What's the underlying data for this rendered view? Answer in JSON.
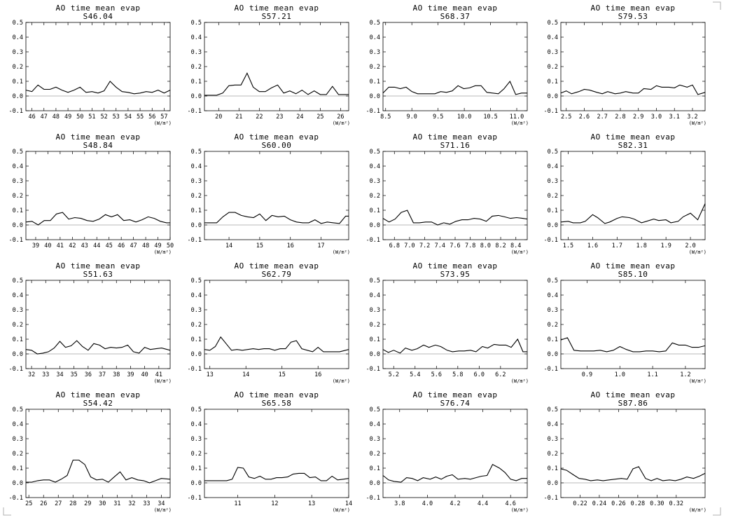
{
  "chart_data": [
    {
      "type": "line",
      "title": "AO time mean evap",
      "subtitle": "S46.04",
      "unit": "(W/m²)",
      "xlim": [
        45.5,
        57.5
      ],
      "ylim": [
        -0.1,
        0.5
      ],
      "xticks": [
        46,
        47,
        48,
        49,
        50,
        51,
        52,
        53,
        54,
        55,
        56,
        57
      ],
      "yticks": [
        -0.1,
        0.0,
        0.1,
        0.2,
        0.3,
        0.4,
        0.5
      ],
      "x": [
        45.5,
        46,
        46.5,
        47,
        47.5,
        48,
        48.5,
        49,
        49.5,
        50,
        50.5,
        51,
        51.5,
        52,
        52.5,
        53,
        53.5,
        54,
        54.5,
        55,
        55.5,
        56,
        56.5,
        57,
        57.5
      ],
      "y": [
        0.04,
        0.03,
        0.075,
        0.045,
        0.045,
        0.06,
        0.04,
        0.025,
        0.04,
        0.06,
        0.025,
        0.03,
        0.02,
        0.035,
        0.1,
        0.06,
        0.03,
        0.025,
        0.015,
        0.02,
        0.03,
        0.025,
        0.04,
        0.02,
        0.04
      ]
    },
    {
      "type": "line",
      "title": "AO time mean evap",
      "subtitle": "S57.21",
      "unit": "(W/m²)",
      "xlim": [
        19.3,
        26.4
      ],
      "ylim": [
        -0.1,
        0.5
      ],
      "xticks": [
        20,
        21,
        22,
        23,
        24,
        25,
        26
      ],
      "yticks": [
        -0.1,
        0.0,
        0.1,
        0.2,
        0.3,
        0.4,
        0.5
      ],
      "x": [
        19.3,
        19.6,
        19.9,
        20.2,
        20.5,
        20.8,
        21.1,
        21.4,
        21.7,
        22.0,
        22.3,
        22.6,
        22.9,
        23.2,
        23.5,
        23.8,
        24.1,
        24.4,
        24.7,
        25.0,
        25.3,
        25.6,
        25.9,
        26.2,
        26.4
      ],
      "y": [
        0.005,
        0.005,
        0.005,
        0.02,
        0.07,
        0.075,
        0.075,
        0.155,
        0.06,
        0.03,
        0.03,
        0.055,
        0.075,
        0.02,
        0.035,
        0.015,
        0.04,
        0.01,
        0.035,
        0.01,
        0.01,
        0.065,
        0.01,
        0.01,
        0.01
      ]
    },
    {
      "type": "line",
      "title": "AO time mean evap",
      "subtitle": "S68.37",
      "unit": "(W/m²)",
      "xlim": [
        8.45,
        11.2
      ],
      "ylim": [
        -0.1,
        0.5
      ],
      "xticks": [
        8.5,
        9.0,
        9.5,
        10.0,
        10.5,
        11.0
      ],
      "yticks": [
        -0.1,
        0.0,
        0.1,
        0.2,
        0.3,
        0.4,
        0.5
      ],
      "x": [
        8.45,
        8.56,
        8.67,
        8.78,
        8.89,
        9.0,
        9.11,
        9.22,
        9.33,
        9.44,
        9.55,
        9.66,
        9.77,
        9.88,
        9.99,
        10.1,
        10.21,
        10.32,
        10.43,
        10.54,
        10.65,
        10.76,
        10.87,
        10.98,
        11.09,
        11.2
      ],
      "y": [
        0.02,
        0.06,
        0.06,
        0.05,
        0.06,
        0.03,
        0.015,
        0.015,
        0.015,
        0.015,
        0.03,
        0.025,
        0.035,
        0.07,
        0.05,
        0.055,
        0.07,
        0.07,
        0.025,
        0.02,
        0.015,
        0.05,
        0.1,
        0.01,
        0.02,
        0.02
      ]
    },
    {
      "type": "line",
      "title": "AO time mean evap",
      "subtitle": "S79.53",
      "unit": "(W/m²)",
      "xlim": [
        2.47,
        3.27
      ],
      "ylim": [
        -0.1,
        0.5
      ],
      "xticks": [
        2.5,
        2.6,
        2.7,
        2.8,
        2.9,
        3.0,
        3.1,
        3.2
      ],
      "yticks": [
        -0.1,
        0.0,
        0.1,
        0.2,
        0.3,
        0.4,
        0.5
      ],
      "x": [
        2.47,
        2.5,
        2.53,
        2.57,
        2.6,
        2.63,
        2.67,
        2.7,
        2.73,
        2.77,
        2.8,
        2.83,
        2.87,
        2.9,
        2.93,
        2.97,
        3.0,
        3.03,
        3.07,
        3.1,
        3.13,
        3.17,
        3.2,
        3.23,
        3.27
      ],
      "y": [
        0.02,
        0.035,
        0.015,
        0.03,
        0.045,
        0.04,
        0.025,
        0.015,
        0.03,
        0.015,
        0.02,
        0.03,
        0.02,
        0.02,
        0.05,
        0.045,
        0.07,
        0.06,
        0.06,
        0.055,
        0.075,
        0.06,
        0.075,
        0.01,
        0.025
      ]
    },
    {
      "type": "line",
      "title": "AO time mean evap",
      "subtitle": "S48.84",
      "unit": "(W/m²)",
      "xlim": [
        38.2,
        50
      ],
      "ylim": [
        -0.1,
        0.5
      ],
      "xticks": [
        39,
        40,
        41,
        42,
        43,
        44,
        45,
        46,
        47,
        48,
        49,
        50
      ],
      "yticks": [
        -0.1,
        0.0,
        0.1,
        0.2,
        0.3,
        0.4,
        0.5
      ],
      "x": [
        38.2,
        38.7,
        39.2,
        39.7,
        40.2,
        40.7,
        41.2,
        41.7,
        42.2,
        42.7,
        43.2,
        43.7,
        44.2,
        44.7,
        45.2,
        45.7,
        46.2,
        46.7,
        47.2,
        47.7,
        48.2,
        48.7,
        49.2,
        49.7,
        50
      ],
      "y": [
        0.02,
        0.025,
        0.0,
        0.03,
        0.03,
        0.075,
        0.085,
        0.04,
        0.05,
        0.045,
        0.03,
        0.025,
        0.04,
        0.07,
        0.055,
        0.07,
        0.03,
        0.035,
        0.02,
        0.035,
        0.055,
        0.045,
        0.025,
        0.015,
        0.015
      ]
    },
    {
      "type": "line",
      "title": "AO time mean evap",
      "subtitle": "S60.00",
      "unit": "(W/m²)",
      "xlim": [
        13.2,
        17.9
      ],
      "ylim": [
        -0.1,
        0.5
      ],
      "xticks": [
        14,
        15,
        16,
        17
      ],
      "yticks": [
        -0.1,
        0.0,
        0.1,
        0.2,
        0.3,
        0.4,
        0.5
      ],
      "x": [
        13.2,
        13.4,
        13.6,
        13.8,
        14.0,
        14.2,
        14.4,
        14.6,
        14.8,
        15.0,
        15.2,
        15.4,
        15.6,
        15.8,
        16.0,
        16.2,
        16.4,
        16.6,
        16.8,
        17.0,
        17.2,
        17.4,
        17.6,
        17.8,
        17.9
      ],
      "y": [
        0.015,
        0.015,
        0.015,
        0.055,
        0.085,
        0.085,
        0.065,
        0.055,
        0.05,
        0.075,
        0.03,
        0.065,
        0.055,
        0.06,
        0.035,
        0.02,
        0.015,
        0.015,
        0.035,
        0.01,
        0.02,
        0.015,
        0.01,
        0.06,
        0.06
      ]
    },
    {
      "type": "line",
      "title": "AO time mean evap",
      "subtitle": "S71.16",
      "unit": "(W/m²)",
      "xlim": [
        6.65,
        8.55
      ],
      "ylim": [
        -0.1,
        0.5
      ],
      "xticks": [
        6.8,
        7.0,
        7.2,
        7.4,
        7.6,
        7.8,
        8.0,
        8.2,
        8.4
      ],
      "yticks": [
        -0.1,
        0.0,
        0.1,
        0.2,
        0.3,
        0.4,
        0.5
      ],
      "x": [
        6.65,
        6.73,
        6.81,
        6.89,
        6.97,
        7.05,
        7.13,
        7.21,
        7.29,
        7.37,
        7.45,
        7.53,
        7.61,
        7.69,
        7.77,
        7.85,
        7.93,
        8.01,
        8.09,
        8.17,
        8.25,
        8.33,
        8.41,
        8.49,
        8.55
      ],
      "y": [
        0.045,
        0.02,
        0.04,
        0.085,
        0.1,
        0.015,
        0.015,
        0.02,
        0.02,
        0.0,
        0.015,
        0.005,
        0.025,
        0.035,
        0.035,
        0.045,
        0.04,
        0.025,
        0.06,
        0.065,
        0.055,
        0.045,
        0.05,
        0.045,
        0.04
      ]
    },
    {
      "type": "line",
      "title": "AO time mean evap",
      "subtitle": "S82.31",
      "unit": "(W/m²)",
      "xlim": [
        1.47,
        2.06
      ],
      "ylim": [
        -0.1,
        0.5
      ],
      "xticks": [
        1.5,
        1.6,
        1.7,
        1.8,
        1.9,
        2.0
      ],
      "yticks": [
        -0.1,
        0.0,
        0.1,
        0.2,
        0.3,
        0.4,
        0.5
      ],
      "x": [
        1.47,
        1.5,
        1.52,
        1.55,
        1.57,
        1.6,
        1.62,
        1.65,
        1.67,
        1.7,
        1.72,
        1.75,
        1.77,
        1.8,
        1.82,
        1.85,
        1.87,
        1.9,
        1.92,
        1.95,
        1.97,
        2.0,
        2.03,
        2.06
      ],
      "y": [
        0.02,
        0.025,
        0.015,
        0.015,
        0.025,
        0.07,
        0.05,
        0.01,
        0.02,
        0.045,
        0.055,
        0.05,
        0.04,
        0.015,
        0.025,
        0.04,
        0.03,
        0.035,
        0.015,
        0.025,
        0.055,
        0.08,
        0.035,
        0.145
      ]
    },
    {
      "type": "line",
      "title": "AO time mean evap",
      "subtitle": "S51.63",
      "unit": "(W/m²)",
      "xlim": [
        31.6,
        41.8
      ],
      "ylim": [
        -0.1,
        0.5
      ],
      "xticks": [
        32,
        33,
        34,
        35,
        36,
        37,
        38,
        39,
        40,
        41
      ],
      "yticks": [
        -0.1,
        0.0,
        0.1,
        0.2,
        0.3,
        0.4,
        0.5
      ],
      "x": [
        31.6,
        32,
        32.4,
        32.8,
        33.2,
        33.6,
        34,
        34.4,
        34.8,
        35.2,
        35.6,
        36,
        36.4,
        36.8,
        37.2,
        37.6,
        38,
        38.4,
        38.8,
        39.2,
        39.6,
        40,
        40.4,
        40.8,
        41.2,
        41.8
      ],
      "y": [
        0.03,
        0.025,
        0.0,
        0.005,
        0.015,
        0.04,
        0.085,
        0.045,
        0.055,
        0.09,
        0.05,
        0.025,
        0.07,
        0.06,
        0.035,
        0.045,
        0.04,
        0.045,
        0.06,
        0.015,
        0.005,
        0.045,
        0.03,
        0.035,
        0.04,
        0.025
      ]
    },
    {
      "type": "line",
      "title": "AO time mean evap",
      "subtitle": "S62.79",
      "unit": "(W/m²)",
      "xlim": [
        12.85,
        16.85
      ],
      "ylim": [
        -0.1,
        0.5
      ],
      "xticks": [
        13,
        14,
        15,
        16
      ],
      "yticks": [
        -0.1,
        0.0,
        0.1,
        0.2,
        0.3,
        0.4,
        0.5
      ],
      "x": [
        12.85,
        13.0,
        13.15,
        13.3,
        13.45,
        13.6,
        13.75,
        13.9,
        14.05,
        14.2,
        14.35,
        14.5,
        14.65,
        14.8,
        14.95,
        15.1,
        15.25,
        15.4,
        15.55,
        15.7,
        15.85,
        16.0,
        16.15,
        16.3,
        16.45,
        16.6,
        16.85
      ],
      "y": [
        0.03,
        0.025,
        0.05,
        0.115,
        0.07,
        0.025,
        0.03,
        0.025,
        0.03,
        0.035,
        0.03,
        0.035,
        0.035,
        0.025,
        0.035,
        0.035,
        0.08,
        0.09,
        0.035,
        0.025,
        0.015,
        0.045,
        0.015,
        0.015,
        0.015,
        0.015,
        0.03
      ]
    },
    {
      "type": "line",
      "title": "AO time mean evap",
      "subtitle": "S73.95",
      "unit": "(W/m²)",
      "xlim": [
        5.1,
        6.45
      ],
      "ylim": [
        -0.1,
        0.5
      ],
      "xticks": [
        5.2,
        5.4,
        5.6,
        5.8,
        6.0,
        6.2
      ],
      "yticks": [
        -0.1,
        0.0,
        0.1,
        0.2,
        0.3,
        0.4,
        0.5
      ],
      "x": [
        5.1,
        5.15,
        5.2,
        5.26,
        5.31,
        5.37,
        5.42,
        5.48,
        5.53,
        5.59,
        5.64,
        5.7,
        5.75,
        5.81,
        5.86,
        5.92,
        5.97,
        6.03,
        6.08,
        6.14,
        6.19,
        6.25,
        6.3,
        6.36,
        6.41,
        6.45
      ],
      "y": [
        0.03,
        0.01,
        0.025,
        0.005,
        0.04,
        0.025,
        0.035,
        0.06,
        0.045,
        0.06,
        0.05,
        0.025,
        0.015,
        0.02,
        0.02,
        0.025,
        0.015,
        0.05,
        0.04,
        0.065,
        0.06,
        0.06,
        0.045,
        0.1,
        0.015,
        0.015
      ]
    },
    {
      "type": "line",
      "title": "AO time mean evap",
      "subtitle": "S85.10",
      "unit": "(W/m²)",
      "xlim": [
        0.82,
        1.26
      ],
      "ylim": [
        -0.1,
        0.5
      ],
      "xticks": [
        0.9,
        1.0,
        1.1,
        1.2
      ],
      "yticks": [
        -0.1,
        0.0,
        0.1,
        0.2,
        0.3,
        0.4,
        0.5
      ],
      "x": [
        0.82,
        0.84,
        0.86,
        0.88,
        0.9,
        0.92,
        0.94,
        0.96,
        0.98,
        1.0,
        1.02,
        1.04,
        1.06,
        1.08,
        1.1,
        1.12,
        1.14,
        1.16,
        1.18,
        1.2,
        1.22,
        1.24,
        1.26
      ],
      "y": [
        0.095,
        0.11,
        0.025,
        0.02,
        0.02,
        0.02,
        0.025,
        0.015,
        0.025,
        0.05,
        0.03,
        0.015,
        0.015,
        0.02,
        0.02,
        0.015,
        0.02,
        0.075,
        0.06,
        0.06,
        0.045,
        0.045,
        0.055
      ]
    },
    {
      "type": "line",
      "title": "AO time mean evap",
      "subtitle": "S54.42",
      "unit": "(W/m²)",
      "xlim": [
        24.8,
        34.6
      ],
      "ylim": [
        -0.1,
        0.5
      ],
      "xticks": [
        25,
        26,
        27,
        28,
        29,
        30,
        31,
        32,
        33,
        34
      ],
      "yticks": [
        -0.1,
        0.0,
        0.1,
        0.2,
        0.3,
        0.4,
        0.5
      ],
      "x": [
        24.8,
        25.2,
        25.6,
        26,
        26.4,
        26.8,
        27.2,
        27.6,
        28,
        28.4,
        28.8,
        29.2,
        29.6,
        30,
        30.4,
        30.8,
        31.2,
        31.6,
        32,
        32.4,
        32.8,
        33.2,
        33.6,
        34,
        34.6
      ],
      "y": [
        0.005,
        0.005,
        0.015,
        0.02,
        0.02,
        0.005,
        0.025,
        0.05,
        0.155,
        0.155,
        0.125,
        0.04,
        0.02,
        0.025,
        0.005,
        0.04,
        0.075,
        0.02,
        0.035,
        0.02,
        0.015,
        0.0,
        0.015,
        0.03,
        0.025
      ]
    },
    {
      "type": "line",
      "title": "AO time mean evap",
      "subtitle": "S65.58",
      "unit": "(W/m²)",
      "xlim": [
        10.1,
        14.0
      ],
      "ylim": [
        -0.1,
        0.5
      ],
      "xticks": [
        11,
        12,
        13,
        14
      ],
      "yticks": [
        -0.1,
        0.0,
        0.1,
        0.2,
        0.3,
        0.4,
        0.5
      ],
      "x": [
        10.1,
        10.25,
        10.4,
        10.55,
        10.7,
        10.85,
        11.0,
        11.15,
        11.3,
        11.45,
        11.6,
        11.75,
        11.9,
        12.05,
        12.2,
        12.35,
        12.5,
        12.65,
        12.8,
        12.95,
        13.1,
        13.25,
        13.4,
        13.55,
        13.7,
        13.85,
        14.0
      ],
      "y": [
        0.015,
        0.015,
        0.015,
        0.015,
        0.015,
        0.025,
        0.105,
        0.1,
        0.04,
        0.03,
        0.045,
        0.025,
        0.025,
        0.035,
        0.035,
        0.04,
        0.06,
        0.065,
        0.065,
        0.035,
        0.04,
        0.015,
        0.015,
        0.045,
        0.02,
        0.025,
        0.03
      ]
    },
    {
      "type": "line",
      "title": "AO time mean evap",
      "subtitle": "S76.74",
      "unit": "(W/m²)",
      "xlim": [
        3.68,
        4.72
      ],
      "ylim": [
        -0.1,
        0.5
      ],
      "xticks": [
        3.8,
        4.0,
        4.2,
        4.4,
        4.6
      ],
      "yticks": [
        -0.1,
        0.0,
        0.1,
        0.2,
        0.3,
        0.4,
        0.5
      ],
      "x": [
        3.68,
        3.72,
        3.76,
        3.81,
        3.85,
        3.89,
        3.93,
        3.97,
        4.02,
        4.06,
        4.1,
        4.14,
        4.18,
        4.22,
        4.27,
        4.31,
        4.35,
        4.39,
        4.43,
        4.47,
        4.52,
        4.56,
        4.6,
        4.64,
        4.68,
        4.72
      ],
      "y": [
        0.05,
        0.02,
        0.01,
        0.005,
        0.035,
        0.03,
        0.015,
        0.035,
        0.025,
        0.04,
        0.025,
        0.045,
        0.055,
        0.025,
        0.03,
        0.025,
        0.035,
        0.045,
        0.05,
        0.125,
        0.1,
        0.07,
        0.025,
        0.015,
        0.03,
        0.03
      ]
    },
    {
      "type": "line",
      "title": "AO time mean evap",
      "subtitle": "S87.86",
      "unit": "(W/m²)",
      "xlim": [
        0.2,
        0.35
      ],
      "ylim": [
        -0.1,
        0.5
      ],
      "xticks": [
        0.22,
        0.24,
        0.26,
        0.28,
        0.3,
        0.32
      ],
      "yticks": [
        -0.1,
        0.0,
        0.1,
        0.2,
        0.3,
        0.4,
        0.5
      ],
      "x": [
        0.2,
        0.206,
        0.213,
        0.219,
        0.225,
        0.231,
        0.238,
        0.244,
        0.25,
        0.256,
        0.263,
        0.269,
        0.275,
        0.281,
        0.288,
        0.294,
        0.3,
        0.306,
        0.313,
        0.319,
        0.325,
        0.331,
        0.338,
        0.344,
        0.35
      ],
      "y": [
        0.095,
        0.085,
        0.055,
        0.03,
        0.025,
        0.015,
        0.02,
        0.015,
        0.02,
        0.025,
        0.03,
        0.025,
        0.095,
        0.11,
        0.03,
        0.015,
        0.03,
        0.015,
        0.02,
        0.015,
        0.025,
        0.04,
        0.03,
        0.045,
        0.065
      ]
    }
  ]
}
